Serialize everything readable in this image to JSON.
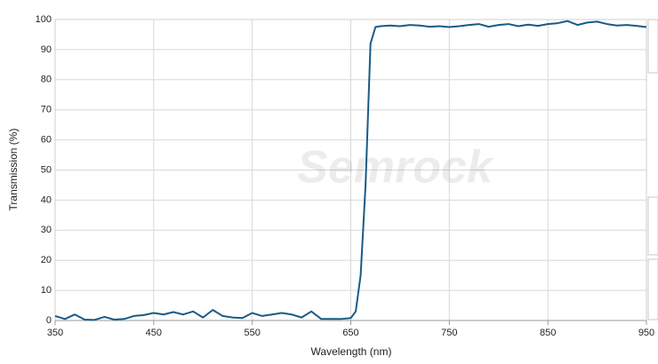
{
  "chart_data": {
    "type": "line",
    "watermark": "Semrock",
    "x_label": "Wavelength (nm)",
    "y_label": "Transmission (%)",
    "x": [
      350,
      360,
      370,
      380,
      390,
      400,
      410,
      420,
      430,
      440,
      450,
      460,
      470,
      480,
      490,
      500,
      510,
      520,
      530,
      540,
      550,
      560,
      570,
      580,
      590,
      600,
      610,
      620,
      630,
      640,
      650,
      655,
      660,
      665,
      670,
      675,
      680,
      690,
      700,
      710,
      720,
      730,
      740,
      750,
      760,
      770,
      780,
      790,
      800,
      810,
      820,
      830,
      840,
      850,
      860,
      870,
      880,
      890,
      900,
      910,
      920,
      930,
      940,
      950
    ],
    "values": [
      1.5,
      0.5,
      2,
      0.3,
      0.2,
      1.2,
      0.3,
      0.5,
      1.5,
      1.8,
      2.5,
      2,
      2.8,
      2,
      3,
      1,
      3.5,
      1.5,
      1,
      0.8,
      2.5,
      1.5,
      2,
      2.5,
      2,
      1,
      3,
      0.5,
      0.5,
      0.5,
      0.8,
      3,
      15,
      45,
      92,
      97.5,
      97.8,
      98,
      97.8,
      98.2,
      98,
      97.6,
      97.8,
      97.5,
      97.8,
      98.2,
      98.5,
      97.6,
      98.2,
      98.5,
      97.8,
      98.3,
      97.9,
      98.5,
      98.8,
      99.5,
      98.2,
      99,
      99.3,
      98.5,
      98,
      98.2,
      97.9,
      97.5
    ],
    "color": "#1b5a86",
    "xlim": [
      350,
      950
    ],
    "xticks": [
      350,
      450,
      550,
      650,
      750,
      850,
      950
    ],
    "ylim": [
      0,
      100
    ],
    "yticks": [
      0,
      10,
      20,
      30,
      40,
      50,
      60,
      70,
      80,
      90,
      100
    ],
    "grid": true
  }
}
